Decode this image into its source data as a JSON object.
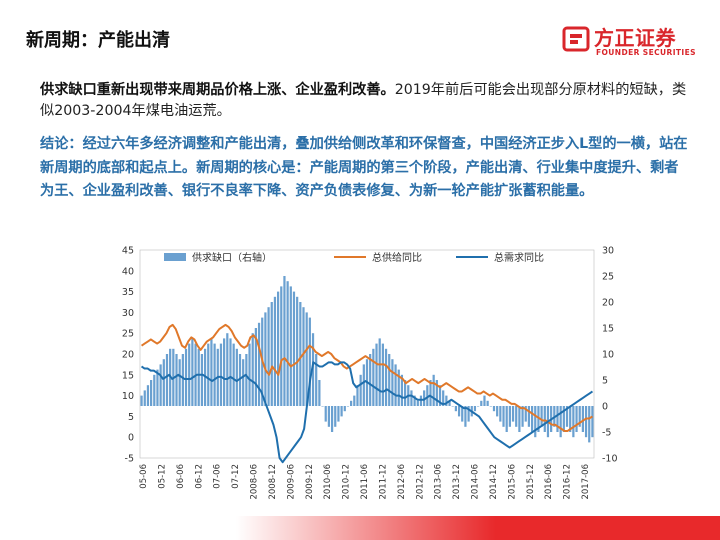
{
  "header": {
    "title": "新周期：产能出清"
  },
  "logo": {
    "name_cn": "方正证券",
    "name_en": "FOUNDER SECURITIES",
    "color": "#d9262b"
  },
  "body": {
    "para1_strong": "供求缺口重新出现带来周期品价格上涨、企业盈利改善。",
    "para1_rest": "2019年前后可能会出现部分原材料的短缺，类似2003-2004年煤电油运荒。",
    "para2": "结论：经过六年多经济调整和产能出清，叠加供给侧改革和环保督查，中国经济正步入L型的一横，站在新周期的底部和起点上。新周期的核心是：产能周期的第三个阶段，产能出清、行业集中度提升、剩者为王、企业盈利改善、银行不良率下降、资产负债表修复、为新一轮产能扩张蓄积能量。"
  },
  "chart_data": {
    "type": "bar+line",
    "legend": [
      "供求缺口（右轴）",
      "总供给同比",
      "总需求同比"
    ],
    "colors": {
      "bar": "#6aa0d0",
      "supply": "#e0782a",
      "demand": "#1f6fad"
    },
    "left_axis": {
      "min": -5,
      "max": 45,
      "ticks": [
        "45",
        "40",
        "35",
        "30",
        "25",
        "20",
        "15",
        "10",
        "5",
        "0",
        "-5"
      ]
    },
    "right_axis": {
      "min": -10,
      "max": 30,
      "ticks": [
        "30",
        "25",
        "20",
        "15",
        "10",
        "5",
        "0",
        "-5",
        "-10"
      ]
    },
    "x_ticks": [
      "05-06",
      "05-12",
      "06-06",
      "06-12",
      "07-06",
      "07-12",
      "2008-06",
      "2008-12",
      "2009-06",
      "2009-12",
      "2010-06",
      "2010-12",
      "2011-06",
      "2011-12",
      "2012-06",
      "2012-12",
      "2013-06",
      "2013-12",
      "2014-06",
      "2014-12",
      "2015-06",
      "2015-12",
      "2016-06",
      "2016-12",
      "2017-06"
    ],
    "supply": [
      22,
      22.5,
      23,
      23.5,
      23,
      22.5,
      23,
      24,
      25,
      26.5,
      27,
      26,
      24,
      22,
      21.5,
      23,
      24,
      23.5,
      22,
      21,
      22,
      23,
      23.5,
      24,
      25,
      26,
      26.5,
      27,
      26.5,
      25.5,
      24,
      23,
      22,
      21.5,
      22,
      24,
      24.5,
      23.5,
      21,
      18,
      16,
      15,
      17,
      16,
      15,
      18.5,
      19,
      18,
      17,
      17.5,
      18,
      19,
      20,
      21,
      22,
      21.5,
      20.5,
      20,
      19.5,
      20,
      20.5,
      20,
      19,
      18.5,
      18,
      17,
      16.5,
      17,
      17.5,
      18,
      18.5,
      19,
      19.5,
      19,
      18.5,
      18,
      17.5,
      17.5,
      17.5,
      17,
      16,
      15.5,
      15,
      14.5,
      14,
      13,
      13.5,
      14,
      13.5,
      13,
      13.5,
      14,
      13.5,
      13,
      13,
      12.5,
      12,
      12.5,
      13,
      12.5,
      12,
      11.5,
      11,
      11,
      11.5,
      12,
      11.5,
      11,
      10.5,
      10.5,
      11,
      10.5,
      10,
      10.5,
      10,
      9.5,
      9,
      9,
      8.5,
      8,
      8,
      7.5,
      7,
      7,
      6.5,
      6,
      5.5,
      5,
      4.5,
      4,
      4,
      3.5,
      3,
      3,
      2.5,
      2,
      1.5,
      1.5,
      2,
      2.5,
      3,
      3.5,
      4,
      4.5,
      4.5,
      5
    ],
    "demand": [
      17,
      16.5,
      16.5,
      16,
      16,
      15.5,
      15,
      14,
      14.5,
      15,
      14,
      14.5,
      15,
      14.5,
      14,
      14,
      14,
      14.5,
      15,
      15,
      15,
      14.5,
      14,
      13.5,
      14,
      14.5,
      14.5,
      14,
      14,
      14.5,
      14,
      13.5,
      14,
      14.5,
      15,
      14,
      13.5,
      13,
      12,
      11,
      9,
      7,
      5,
      3,
      0,
      -5,
      -6,
      -5,
      -4,
      -3,
      -2,
      -1,
      0,
      2,
      8,
      14,
      18,
      17.5,
      17,
      17,
      17.5,
      18,
      18,
      17.5,
      17.5,
      18,
      18,
      17.5,
      16.5,
      13,
      12,
      12.5,
      13,
      13.5,
      13,
      12.5,
      12,
      11.5,
      11,
      11,
      11.5,
      11,
      10.5,
      10,
      10,
      9.5,
      9.5,
      10,
      10,
      9.5,
      9,
      9,
      9,
      9.5,
      10,
      9.5,
      9,
      8.5,
      8,
      8,
      8.5,
      9,
      8.5,
      8,
      7.5,
      7,
      7,
      6.5,
      6,
      5.5,
      5,
      4,
      3,
      2,
      1,
      0,
      -0.5,
      -1,
      -1.5,
      -2,
      -2.5,
      -2,
      -1.5,
      -1,
      -0.5,
      0,
      0.5,
      1,
      1.5,
      2,
      2.5,
      3,
      3.5,
      4,
      4.5,
      5,
      5.5,
      6,
      6.5,
      7,
      7.5,
      8,
      8.5,
      9,
      9.5,
      10,
      10.5,
      11
    ],
    "gap": [
      2,
      3,
      4,
      5,
      6,
      7,
      8,
      9,
      10,
      11,
      11,
      10,
      9,
      10,
      11,
      12,
      13,
      12,
      11,
      10,
      11,
      12,
      13,
      12,
      11,
      12,
      13,
      14,
      13,
      12,
      11,
      10,
      9,
      10,
      12,
      14,
      15,
      16,
      17,
      18,
      19,
      20,
      21,
      22,
      23,
      25,
      24,
      23,
      22,
      21,
      20,
      19,
      18,
      17,
      14,
      10,
      5,
      0,
      -3,
      -4,
      -5,
      -4,
      -3,
      -2,
      -1,
      0,
      1,
      2,
      4,
      6,
      8,
      9,
      10,
      11,
      12,
      13,
      12,
      11,
      10,
      9,
      8,
      7,
      6,
      5,
      4,
      3,
      2,
      1,
      2,
      3,
      4,
      5,
      6,
      5,
      4,
      3,
      2,
      1,
      0,
      -1,
      -2,
      -3,
      -4,
      -3,
      -2,
      -1,
      0,
      1,
      2,
      1,
      0,
      -1,
      -2,
      -3,
      -4,
      -5,
      -4,
      -3,
      -4,
      -5,
      -4,
      -3,
      -4,
      -5,
      -6,
      -5,
      -4,
      -5,
      -6,
      -5,
      -4,
      -5,
      -6,
      -5,
      -4,
      -5,
      -6,
      -5,
      -4,
      -5,
      -6,
      -7,
      -6
    ]
  }
}
